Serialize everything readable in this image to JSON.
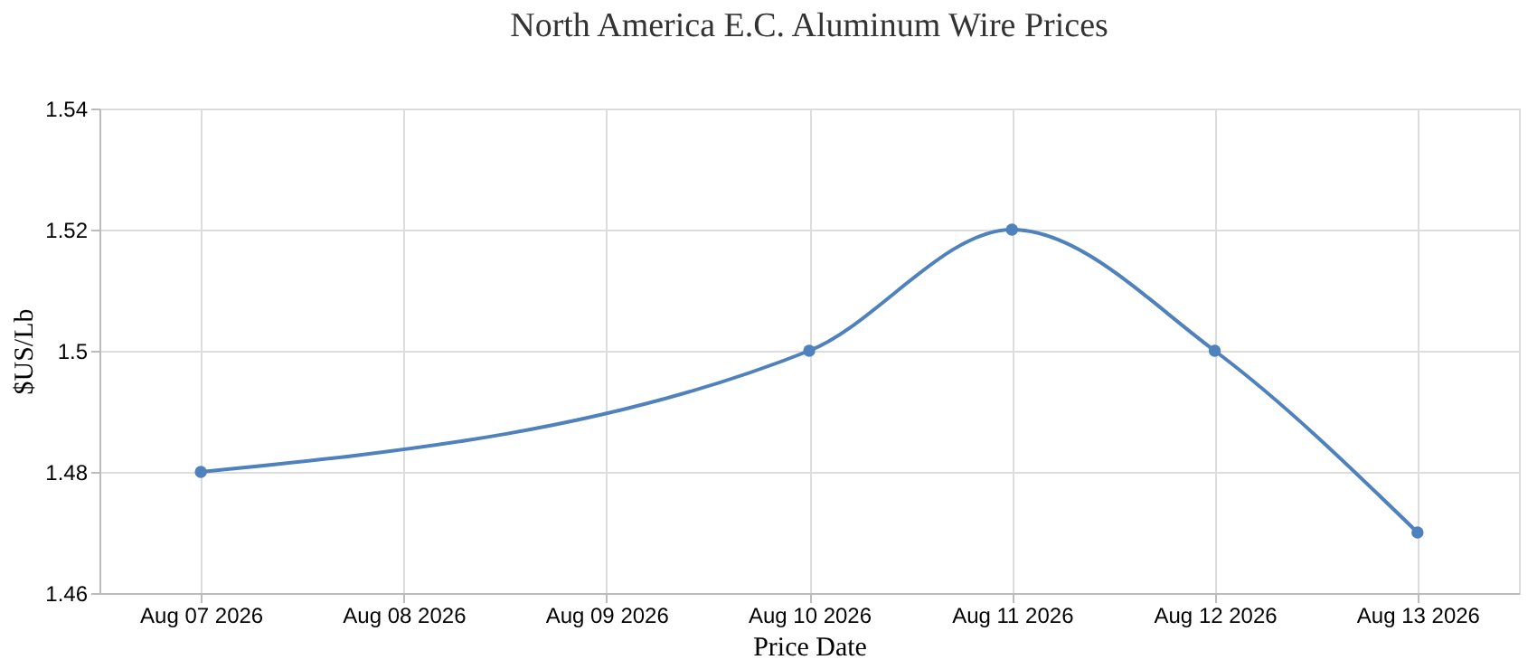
{
  "chart_data": {
    "type": "line",
    "title": "North America E.C. Aluminum Wire Prices",
    "xlabel": "Price Date",
    "ylabel": "$US/Lb",
    "x": [
      "2026-08-07",
      "2026-08-10",
      "2026-08-11",
      "2026-08-12",
      "2026-08-13"
    ],
    "series": [
      {
        "color": "#4f81bc",
        "values": [
          1.48,
          1.5,
          1.52,
          1.5,
          1.47
        ]
      }
    ],
    "xlim": [
      "2026-08-06T12:00",
      "2026-08-13T12:00"
    ],
    "xticks": [
      {
        "value": "2026-08-07",
        "label": "Aug 07 2026"
      },
      {
        "value": "2026-08-08",
        "label": "Aug 08 2026"
      },
      {
        "value": "2026-08-09",
        "label": "Aug 09 2026"
      },
      {
        "value": "2026-08-10",
        "label": "Aug 10 2026"
      },
      {
        "value": "2026-08-11",
        "label": "Aug 11 2026"
      },
      {
        "value": "2026-08-12",
        "label": "Aug 12 2026"
      },
      {
        "value": "2026-08-13",
        "label": "Aug 13 2026"
      }
    ],
    "ylim": [
      1.46,
      1.54
    ],
    "yticks": [
      1.46,
      1.48,
      1.5,
      1.52,
      1.54
    ],
    "grid": true,
    "legend": false,
    "marker": "circle",
    "line_style": "solid"
  }
}
